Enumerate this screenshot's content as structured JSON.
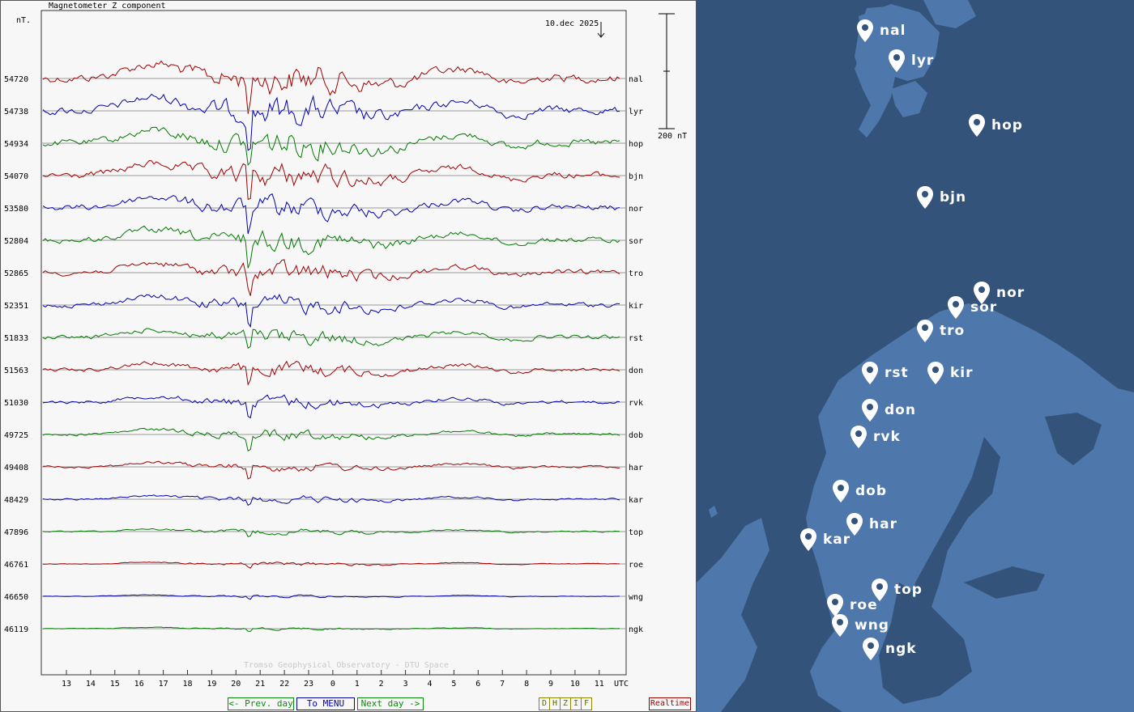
{
  "header": {
    "title": "Magnetometer Z component",
    "unit": "nT.",
    "date": "10.dec 2025",
    "scale_label": "200 nT",
    "watermark": "Tromso Geophysical Observatory - DTU Space"
  },
  "nav": {
    "prev_label": "<- Prev. day",
    "menu_label": "To MENU",
    "next_label": "Next day ->",
    "components": [
      "D",
      "H",
      "Z",
      "I",
      "F"
    ],
    "realtime_label": "Realtime"
  },
  "colors": {
    "red": "#a00000",
    "blue": "#0000b0",
    "green": "#007a00",
    "grid": "#9a9a9a",
    "map_sea": "#33537a",
    "map_land": "#4e77ab"
  },
  "chart_data": {
    "type": "line",
    "title": "Magnetometer Z component",
    "xlabel": "UTC",
    "ylabel": "nT.",
    "x_ticks": [
      "13",
      "14",
      "15",
      "16",
      "17",
      "18",
      "19",
      "20",
      "21",
      "22",
      "23",
      "0",
      "1",
      "2",
      "3",
      "4",
      "5",
      "6",
      "7",
      "8",
      "9",
      "10",
      "11",
      "UTC"
    ],
    "scale_bar_nT": 200,
    "series": [
      {
        "name": "nal",
        "baseline": 54720,
        "color": "red"
      },
      {
        "name": "lyr",
        "baseline": 54738,
        "color": "blue"
      },
      {
        "name": "hop",
        "baseline": 54934,
        "color": "green"
      },
      {
        "name": "bjn",
        "baseline": 54070,
        "color": "red"
      },
      {
        "name": "nor",
        "baseline": 53580,
        "color": "blue"
      },
      {
        "name": "sor",
        "baseline": 52804,
        "color": "green"
      },
      {
        "name": "tro",
        "baseline": 52865,
        "color": "red"
      },
      {
        "name": "kir",
        "baseline": 52351,
        "color": "blue"
      },
      {
        "name": "rst",
        "baseline": 51833,
        "color": "green"
      },
      {
        "name": "don",
        "baseline": 51563,
        "color": "red"
      },
      {
        "name": "rvk",
        "baseline": 51030,
        "color": "blue"
      },
      {
        "name": "dob",
        "baseline": 49725,
        "color": "green"
      },
      {
        "name": "har",
        "baseline": 49408,
        "color": "red"
      },
      {
        "name": "kar",
        "baseline": 48429,
        "color": "blue"
      },
      {
        "name": "top",
        "baseline": 47896,
        "color": "green"
      },
      {
        "name": "roe",
        "baseline": 46761,
        "color": "red"
      },
      {
        "name": "wng",
        "baseline": 46650,
        "color": "blue"
      },
      {
        "name": "ngk",
        "baseline": 46119,
        "color": "green"
      }
    ]
  },
  "map": {
    "stations": [
      {
        "name": "nal"
      },
      {
        "name": "lyr"
      },
      {
        "name": "hop"
      },
      {
        "name": "bjn"
      },
      {
        "name": "nor"
      },
      {
        "name": "sor"
      },
      {
        "name": "tro"
      },
      {
        "name": "rst"
      },
      {
        "name": "kir"
      },
      {
        "name": "don"
      },
      {
        "name": "rvk"
      },
      {
        "name": "dob"
      },
      {
        "name": "har"
      },
      {
        "name": "kar"
      },
      {
        "name": "top"
      },
      {
        "name": "roe"
      },
      {
        "name": "wng"
      },
      {
        "name": "ngk"
      }
    ]
  }
}
